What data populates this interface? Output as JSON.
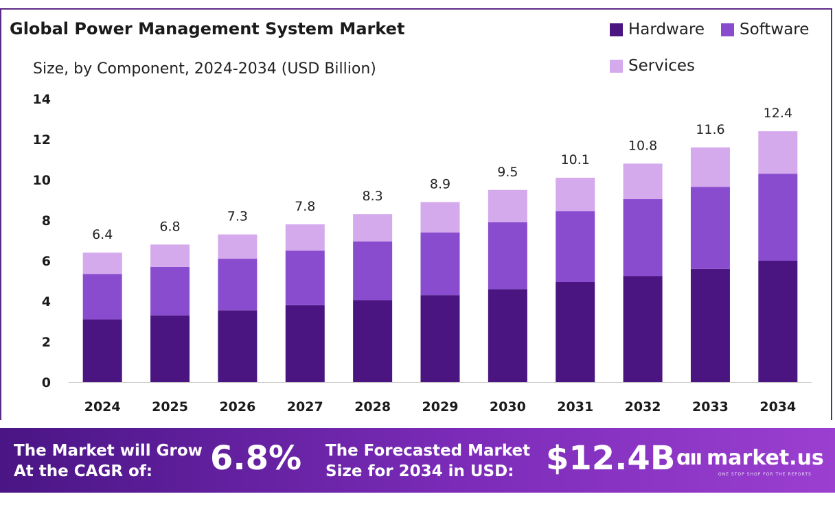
{
  "header": {
    "title": "Global Power Management System Market",
    "subtitle": "Size, by Component, 2024-2034 (USD Billion)"
  },
  "colors": {
    "hardware": "#4a1580",
    "software": "#8a4ccf",
    "services": "#d4aaed",
    "frame": "#5b2a86"
  },
  "chart_data": {
    "type": "bar",
    "stacked": true,
    "categories": [
      "2024",
      "2025",
      "2026",
      "2027",
      "2028",
      "2029",
      "2030",
      "2031",
      "2032",
      "2033",
      "2034"
    ],
    "series": [
      {
        "name": "Hardware",
        "values": [
          3.1,
          3.3,
          3.55,
          3.8,
          4.05,
          4.3,
          4.6,
          4.95,
          5.25,
          5.6,
          6.0
        ]
      },
      {
        "name": "Software",
        "values": [
          2.25,
          2.4,
          2.55,
          2.7,
          2.9,
          3.1,
          3.3,
          3.5,
          3.8,
          4.05,
          4.3
        ]
      },
      {
        "name": "Services",
        "values": [
          1.05,
          1.1,
          1.2,
          1.3,
          1.35,
          1.5,
          1.6,
          1.65,
          1.75,
          1.95,
          2.1
        ]
      }
    ],
    "totals": [
      "6.4",
      "6.8",
      "7.3",
      "7.8",
      "8.3",
      "8.9",
      "9.5",
      "10.1",
      "10.8",
      "11.6",
      "12.4"
    ],
    "ylim": [
      0,
      14
    ],
    "yticks": [
      "0",
      "2",
      "4",
      "6",
      "8",
      "10",
      "12",
      "14"
    ],
    "legend": [
      "Hardware",
      "Software",
      "Services"
    ],
    "legend_position": "top-right",
    "grid": false
  },
  "banner": {
    "cagr_label_line1": "The Market will Grow",
    "cagr_label_line2": "At the CAGR of:",
    "cagr_value": "6.8%",
    "forecast_label_line1": "The Forecasted Market",
    "forecast_label_line2": "Size for 2034 in USD:",
    "forecast_value": "$12.4B",
    "logo_mark": "ɑıı",
    "logo_text": "market.us",
    "logo_tagline": "ONE STOP SHOP FOR THE REPORTS"
  }
}
